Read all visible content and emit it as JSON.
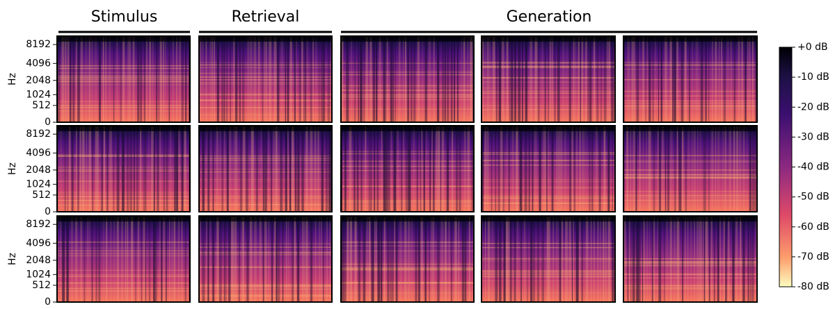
{
  "chart_data": {
    "type": "spectrogram-grid",
    "column_groups": [
      "Stimulus",
      "Retrieval",
      "Generation"
    ],
    "ylabel": "Hz",
    "yscale": "mel",
    "ylim": [
      0,
      11025
    ],
    "yticks": [
      0,
      512,
      1024,
      2048,
      4096,
      8192
    ],
    "colorbar": {
      "colormap": "magma",
      "lim": [
        -80,
        0
      ],
      "ticks": [
        {
          "value": 0,
          "label": "+0 dB"
        },
        {
          "value": -10,
          "label": "-10 dB"
        },
        {
          "value": -20,
          "label": "-20 dB"
        },
        {
          "value": -30,
          "label": "-30 dB"
        },
        {
          "value": -40,
          "label": "-40 dB"
        },
        {
          "value": -50,
          "label": "-50 dB"
        },
        {
          "value": -60,
          "label": "-60 dB"
        },
        {
          "value": -70,
          "label": "-70 dB"
        },
        {
          "value": -80,
          "label": "-80 dB"
        }
      ]
    }
  }
}
